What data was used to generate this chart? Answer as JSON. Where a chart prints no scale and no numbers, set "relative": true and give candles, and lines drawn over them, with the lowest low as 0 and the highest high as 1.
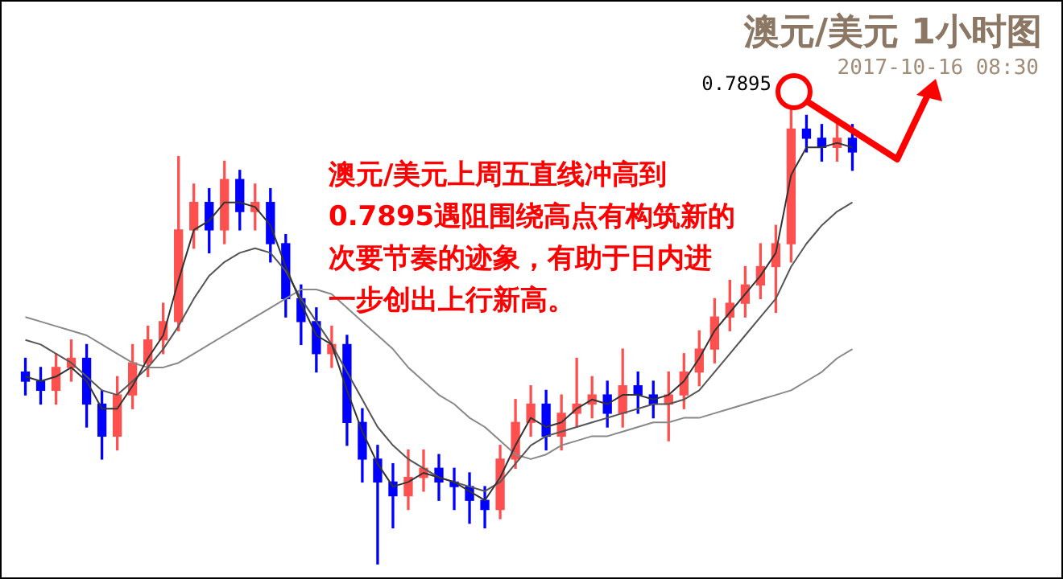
{
  "chart_data": {
    "type": "candlestick",
    "relative": true,
    "title": "澳元/美元 1小时图",
    "subtitle": "2017-10-16 08:30",
    "annotations": [
      "澳元/美元上周五直线冲高到0.7895遇阻围绕高点有构筑新的次要节奏的迹象，有助于日内进一步创出上行新高。",
      "0.7895"
    ],
    "categories": [
      null,
      null,
      null,
      null,
      null,
      null,
      null,
      null,
      null,
      null,
      null,
      null,
      null,
      null,
      null,
      null,
      null,
      null,
      null,
      null,
      null,
      null,
      null,
      null,
      null,
      null,
      null,
      null,
      null,
      null,
      null,
      null,
      null,
      null,
      null,
      null,
      null,
      null,
      null,
      null,
      null,
      null,
      null,
      null,
      null,
      null,
      null,
      null,
      null,
      null,
      null,
      null,
      null,
      null,
      null
    ],
    "ohlc": [
      [
        0.42,
        0.45,
        0.37,
        0.4
      ],
      [
        0.4,
        0.43,
        0.35,
        0.38
      ],
      [
        0.38,
        0.46,
        0.35,
        0.43
      ],
      [
        0.43,
        0.49,
        0.4,
        0.45
      ],
      [
        0.45,
        0.48,
        0.3,
        0.35
      ],
      [
        0.35,
        0.38,
        0.23,
        0.28
      ],
      [
        0.28,
        0.41,
        0.25,
        0.37
      ],
      [
        0.37,
        0.48,
        0.34,
        0.44
      ],
      [
        0.44,
        0.52,
        0.41,
        0.49
      ],
      [
        0.49,
        0.57,
        0.46,
        0.53
      ],
      [
        0.53,
        0.89,
        0.51,
        0.73
      ],
      [
        0.73,
        0.83,
        0.69,
        0.79
      ],
      [
        0.79,
        0.82,
        0.68,
        0.73
      ],
      [
        0.73,
        0.88,
        0.7,
        0.84
      ],
      [
        0.84,
        0.86,
        0.73,
        0.77
      ],
      [
        0.77,
        0.83,
        0.73,
        0.79
      ],
      [
        0.79,
        0.82,
        0.66,
        0.7
      ],
      [
        0.7,
        0.72,
        0.54,
        0.58
      ],
      [
        0.58,
        0.61,
        0.48,
        0.53
      ],
      [
        0.53,
        0.56,
        0.42,
        0.46
      ],
      [
        0.46,
        0.52,
        0.43,
        0.48
      ],
      [
        0.48,
        0.5,
        0.26,
        0.31
      ],
      [
        0.31,
        0.34,
        0.18,
        0.23
      ],
      [
        0.23,
        0.26,
        0.0,
        0.18
      ],
      [
        0.18,
        0.22,
        0.08,
        0.15
      ],
      [
        0.15,
        0.25,
        0.12,
        0.19
      ],
      [
        0.19,
        0.25,
        0.16,
        0.21
      ],
      [
        0.21,
        0.24,
        0.14,
        0.18
      ],
      [
        0.18,
        0.21,
        0.12,
        0.17
      ],
      [
        0.17,
        0.2,
        0.09,
        0.14
      ],
      [
        0.14,
        0.17,
        0.08,
        0.12
      ],
      [
        0.12,
        0.26,
        0.1,
        0.23
      ],
      [
        0.23,
        0.36,
        0.21,
        0.31
      ],
      [
        0.31,
        0.39,
        0.28,
        0.35
      ],
      [
        0.35,
        0.38,
        0.25,
        0.28
      ],
      [
        0.28,
        0.37,
        0.25,
        0.33
      ],
      [
        0.33,
        0.45,
        0.3,
        0.35
      ],
      [
        0.35,
        0.41,
        0.32,
        0.37
      ],
      [
        0.37,
        0.4,
        0.3,
        0.33
      ],
      [
        0.33,
        0.47,
        0.3,
        0.39
      ],
      [
        0.39,
        0.42,
        0.33,
        0.37
      ],
      [
        0.37,
        0.4,
        0.32,
        0.35
      ],
      [
        0.35,
        0.42,
        0.27,
        0.37
      ],
      [
        0.37,
        0.46,
        0.34,
        0.42
      ],
      [
        0.42,
        0.51,
        0.39,
        0.47
      ],
      [
        0.47,
        0.58,
        0.44,
        0.54
      ],
      [
        0.54,
        0.62,
        0.51,
        0.57
      ],
      [
        0.57,
        0.65,
        0.54,
        0.61
      ],
      [
        0.61,
        0.7,
        0.58,
        0.65
      ],
      [
        0.65,
        0.74,
        0.55,
        0.7
      ],
      [
        0.7,
        1.0,
        0.66,
        0.95
      ],
      [
        0.95,
        0.98,
        0.9,
        0.93
      ],
      [
        0.93,
        0.96,
        0.88,
        0.91
      ],
      [
        0.91,
        0.97,
        0.88,
        0.93
      ],
      [
        0.93,
        0.96,
        0.86,
        0.9
      ]
    ],
    "colors": [
      "#0000ff",
      "#0000ff",
      "#ff5050",
      "#ff5050",
      "#0000ff",
      "#0000ff",
      "#ff5050",
      "#ff5050",
      "#ff5050",
      "#ff5050",
      "#ff5050",
      "#ff5050",
      "#0000ff",
      "#ff5050",
      "#0000ff",
      "#ff5050",
      "#0000ff",
      "#0000ff",
      "#0000ff",
      "#0000ff",
      "#ff5050",
      "#0000ff",
      "#0000ff",
      "#0000ff",
      "#0000ff",
      "#ff5050",
      "#ff5050",
      "#0000ff",
      "#0000ff",
      "#0000ff",
      "#0000ff",
      "#ff5050",
      "#ff5050",
      "#ff5050",
      "#0000ff",
      "#ff5050",
      "#ff5050",
      "#ff5050",
      "#0000ff",
      "#ff5050",
      "#0000ff",
      "#0000ff",
      "#ff5050",
      "#ff5050",
      "#ff5050",
      "#ff5050",
      "#ff5050",
      "#ff5050",
      "#ff5050",
      "#ff5050",
      "#ff5050",
      "#0000ff",
      "#0000ff",
      "#ff5050",
      "#0000ff"
    ],
    "series": [
      {
        "type": "line",
        "color": "#333333",
        "values": [
          0.41,
          0.4,
          0.41,
          0.43,
          0.4,
          0.34,
          0.34,
          0.39,
          0.45,
          0.5,
          0.62,
          0.73,
          0.75,
          0.79,
          0.79,
          0.78,
          0.74,
          0.65,
          0.57,
          0.5,
          0.48,
          0.38,
          0.29,
          0.22,
          0.17,
          0.18,
          0.2,
          0.19,
          0.18,
          0.16,
          0.14,
          0.19,
          0.26,
          0.32,
          0.3,
          0.31,
          0.34,
          0.36,
          0.35,
          0.37,
          0.37,
          0.36,
          0.37,
          0.4,
          0.45,
          0.51,
          0.55,
          0.59,
          0.63,
          0.68,
          0.85,
          0.91,
          0.91,
          0.92,
          0.91
        ]
      },
      {
        "type": "line",
        "color": "#555555",
        "values": [
          0.49,
          0.48,
          0.46,
          0.44,
          0.41,
          0.38,
          0.37,
          0.4,
          0.43,
          0.47,
          0.52,
          0.58,
          0.63,
          0.66,
          0.68,
          0.69,
          0.68,
          0.64,
          0.58,
          0.53,
          0.48,
          0.42,
          0.36,
          0.3,
          0.26,
          0.23,
          0.21,
          0.19,
          0.18,
          0.17,
          0.16,
          0.18,
          0.22,
          0.26,
          0.28,
          0.29,
          0.3,
          0.31,
          0.32,
          0.33,
          0.34,
          0.35,
          0.35,
          0.36,
          0.38,
          0.42,
          0.46,
          0.5,
          0.54,
          0.58,
          0.65,
          0.7,
          0.74,
          0.77,
          0.79
        ]
      },
      {
        "type": "line",
        "color": "#888888",
        "values": [
          0.54,
          0.53,
          0.52,
          0.51,
          0.5,
          0.48,
          0.46,
          0.44,
          0.43,
          0.43,
          0.44,
          0.46,
          0.48,
          0.5,
          0.52,
          0.54,
          0.56,
          0.58,
          0.6,
          0.6,
          0.59,
          0.56,
          0.53,
          0.5,
          0.47,
          0.43,
          0.4,
          0.37,
          0.35,
          0.32,
          0.3,
          0.27,
          0.24,
          0.23,
          0.24,
          0.26,
          0.27,
          0.28,
          0.28,
          0.29,
          0.3,
          0.31,
          0.31,
          0.32,
          0.32,
          0.33,
          0.34,
          0.35,
          0.36,
          0.37,
          0.38,
          0.4,
          0.42,
          0.45,
          0.47
        ]
      }
    ]
  }
}
